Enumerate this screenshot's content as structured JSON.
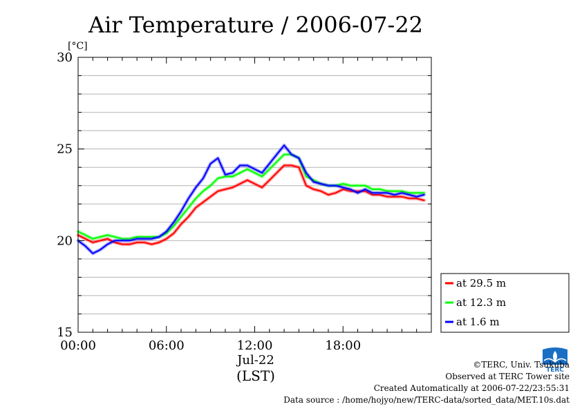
{
  "chart_data": {
    "type": "line",
    "title": "Air Temperature / 2006-07-22",
    "ylabel": "[°C]",
    "xlabel_date": "Jul-22",
    "xlabel_unit": "(LST)",
    "xlim": [
      0,
      24
    ],
    "ylim": [
      15,
      30
    ],
    "y_ticks": [
      15,
      20,
      25,
      30
    ],
    "y_tick_labels": [
      "15",
      "20",
      "25",
      "30"
    ],
    "y_minor_step": 1,
    "x_ticks": [
      0,
      6,
      12,
      18
    ],
    "x_tick_labels": [
      "00:00",
      "06:00",
      "12:00",
      "18:00"
    ],
    "grid": true,
    "legend_position": "right-bottom",
    "series": [
      {
        "name": "at 29.5 m",
        "color": "#ff0000",
        "x": [
          0,
          0.5,
          1,
          1.5,
          2,
          2.5,
          3,
          3.5,
          4,
          4.5,
          5,
          5.5,
          6,
          6.5,
          7,
          7.5,
          8,
          8.5,
          9,
          9.5,
          10,
          10.5,
          11,
          11.5,
          12,
          12.5,
          13,
          13.5,
          14,
          14.5,
          15,
          15.5,
          16,
          16.5,
          17,
          17.5,
          18,
          18.5,
          19,
          19.5,
          20,
          20.5,
          21,
          21.5,
          22,
          22.5,
          23,
          23.5
        ],
        "values": [
          20.3,
          20.1,
          19.9,
          20.0,
          20.1,
          19.9,
          19.8,
          19.8,
          19.9,
          19.9,
          19.8,
          19.9,
          20.1,
          20.4,
          20.9,
          21.3,
          21.8,
          22.1,
          22.4,
          22.7,
          22.8,
          22.9,
          23.1,
          23.3,
          23.1,
          22.9,
          23.3,
          23.7,
          24.1,
          24.1,
          24.0,
          23.0,
          22.8,
          22.7,
          22.5,
          22.6,
          22.8,
          22.7,
          22.7,
          22.7,
          22.5,
          22.5,
          22.4,
          22.4,
          22.4,
          22.3,
          22.3,
          22.2
        ]
      },
      {
        "name": "at 12.3 m",
        "color": "#00ff00",
        "x": [
          0,
          0.5,
          1,
          1.5,
          2,
          2.5,
          3,
          3.5,
          4,
          4.5,
          5,
          5.5,
          6,
          6.5,
          7,
          7.5,
          8,
          8.5,
          9,
          9.5,
          10,
          10.5,
          11,
          11.5,
          12,
          12.5,
          13,
          13.5,
          14,
          14.5,
          15,
          15.5,
          16,
          16.5,
          17,
          17.5,
          18,
          18.5,
          19,
          19.5,
          20,
          20.5,
          21,
          21.5,
          22,
          22.5,
          23,
          23.5
        ],
        "values": [
          20.5,
          20.3,
          20.1,
          20.2,
          20.3,
          20.2,
          20.1,
          20.1,
          20.2,
          20.2,
          20.2,
          20.2,
          20.4,
          20.8,
          21.3,
          21.8,
          22.3,
          22.7,
          23.0,
          23.4,
          23.5,
          23.5,
          23.7,
          23.9,
          23.7,
          23.5,
          23.9,
          24.3,
          24.7,
          24.7,
          24.5,
          23.5,
          23.3,
          23.1,
          23.0,
          23.0,
          23.1,
          23.0,
          23.0,
          23.0,
          22.8,
          22.8,
          22.7,
          22.7,
          22.7,
          22.6,
          22.6,
          22.6
        ]
      },
      {
        "name": "at 1.6 m",
        "color": "#0000ff",
        "x": [
          0,
          0.5,
          1,
          1.5,
          2,
          2.5,
          3,
          3.5,
          4,
          4.5,
          5,
          5.5,
          6,
          6.5,
          7,
          7.5,
          8,
          8.5,
          9,
          9.5,
          10,
          10.5,
          11,
          11.5,
          12,
          12.5,
          13,
          13.5,
          14,
          14.5,
          15,
          15.5,
          16,
          16.5,
          17,
          17.5,
          18,
          18.5,
          19,
          19.5,
          20,
          20.5,
          21,
          21.5,
          22,
          22.5,
          23,
          23.5
        ],
        "values": [
          20.0,
          19.7,
          19.3,
          19.5,
          19.8,
          20.0,
          20.0,
          20.0,
          20.1,
          20.1,
          20.1,
          20.2,
          20.5,
          21.0,
          21.6,
          22.3,
          22.9,
          23.4,
          24.2,
          24.5,
          23.6,
          23.7,
          24.1,
          24.1,
          23.9,
          23.7,
          24.2,
          24.7,
          25.2,
          24.7,
          24.5,
          23.7,
          23.2,
          23.1,
          23.0,
          23.0,
          22.9,
          22.8,
          22.6,
          22.8,
          22.6,
          22.6,
          22.6,
          22.5,
          22.6,
          22.5,
          22.4,
          22.5
        ]
      }
    ]
  },
  "credits": {
    "copyright": "©TERC, Univ. Tsukuba",
    "observed": "Observed at TERC Tower site",
    "created": "Created Automatically at 2006-07-22/23:55:31",
    "source": "Data source : /home/hojyo/new/TERC-data/sorted_data/MET.10s.dat"
  },
  "logo": {
    "name": "terc-logo",
    "text": "TERC",
    "color": "#1a6fc4"
  }
}
